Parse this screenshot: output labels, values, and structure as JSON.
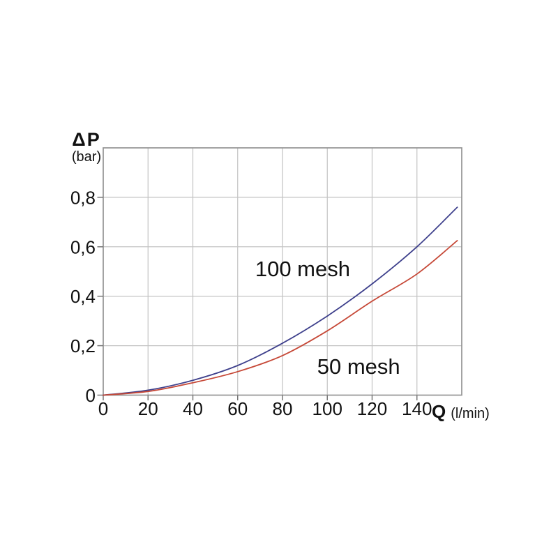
{
  "chart_data": {
    "type": "line",
    "title": "",
    "x_axis": {
      "symbol": "Q",
      "unit": "(l/min)",
      "tick_labels": [
        "0",
        "20",
        "40",
        "60",
        "80",
        "100",
        "120",
        "140"
      ],
      "tick_values": [
        0,
        20,
        40,
        60,
        80,
        100,
        120,
        140
      ],
      "range": [
        0,
        160
      ],
      "grid_step": 20
    },
    "y_axis": {
      "symbol": "ΔP",
      "unit": "(bar)",
      "tick_labels": [
        "0",
        "0,2",
        "0,4",
        "0,6",
        "0,8"
      ],
      "tick_values": [
        0,
        0.2,
        0.4,
        0.6,
        0.8
      ],
      "range": [
        0,
        1.0
      ],
      "grid_step": 0.2
    },
    "grid": true,
    "legend": "inline-annotations",
    "series": [
      {
        "name": "100 mesh",
        "color": "#3e408c",
        "points": [
          [
            0,
            0
          ],
          [
            20,
            0.02
          ],
          [
            40,
            0.06
          ],
          [
            60,
            0.12
          ],
          [
            80,
            0.21
          ],
          [
            100,
            0.32
          ],
          [
            120,
            0.45
          ],
          [
            140,
            0.6
          ],
          [
            158,
            0.76
          ]
        ],
        "label_anchor": {
          "x": 89,
          "y": 0.51
        }
      },
      {
        "name": "50 mesh",
        "color": "#c64837",
        "points": [
          [
            0,
            0
          ],
          [
            20,
            0.015
          ],
          [
            40,
            0.05
          ],
          [
            60,
            0.095
          ],
          [
            80,
            0.16
          ],
          [
            100,
            0.26
          ],
          [
            120,
            0.38
          ],
          [
            140,
            0.49
          ],
          [
            158,
            0.625
          ]
        ],
        "label_anchor": {
          "x": 114,
          "y": 0.115
        }
      }
    ],
    "colors": {
      "grid": "#c4c4c4",
      "frame": "#939393",
      "tick": "#777777",
      "text": "#111111"
    }
  }
}
